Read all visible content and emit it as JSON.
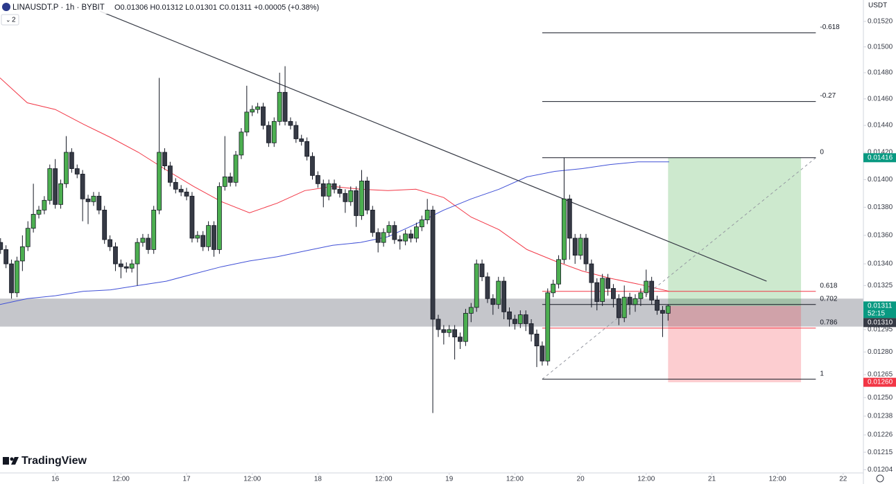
{
  "chart_data": {
    "type": "candlestick",
    "title": "LINAUSDT.P · 1h · BYBIT",
    "ohlc_text": "O0.01306 H0.01312 L0.01301 C0.01311 +0.00005 (+0.38%)",
    "indicator_count": "2",
    "currency": "USDT",
    "brand": "TradingView",
    "log_scale": true,
    "grid": false,
    "up_color": "#4caf50",
    "down_color": "#363a45",
    "xlim": [
      -10.1,
      147.7
    ],
    "ylim": [
      0.01202,
      0.01537
    ],
    "xticks": [
      {
        "value": 0,
        "label": "16"
      },
      {
        "value": 12,
        "label": "12:00"
      },
      {
        "value": 24,
        "label": "17"
      },
      {
        "value": 36,
        "label": "12:00"
      },
      {
        "value": 48,
        "label": "18"
      },
      {
        "value": 60,
        "label": "12:00"
      },
      {
        "value": 72,
        "label": "19"
      },
      {
        "value": 84,
        "label": "12:00"
      },
      {
        "value": 96,
        "label": "20"
      },
      {
        "value": 108,
        "label": "12:00"
      },
      {
        "value": 120,
        "label": "21"
      },
      {
        "value": 132,
        "label": "12:00"
      },
      {
        "value": 144,
        "label": "22"
      }
    ],
    "yticks": [
      {
        "value": 0.0152,
        "label": "0.01520"
      },
      {
        "value": 0.015,
        "label": "0.01500"
      },
      {
        "value": 0.0148,
        "label": "0.01480"
      },
      {
        "value": 0.0146,
        "label": "0.01460"
      },
      {
        "value": 0.0144,
        "label": "0.01440"
      },
      {
        "value": 0.0142,
        "label": "0.01420"
      },
      {
        "value": 0.014,
        "label": "0.01400"
      },
      {
        "value": 0.0138,
        "label": "0.01380"
      },
      {
        "value": 0.0136,
        "label": "0.01360"
      },
      {
        "value": 0.0134,
        "label": "0.01340"
      },
      0.01325,
      0.01295,
      {
        "value": 0.0128,
        "label": "0.01280"
      },
      0.01265,
      {
        "value": 0.0125,
        "label": "0.01250"
      },
      0.01238,
      0.01226,
      0.01215,
      0.01204
    ],
    "x": [
      -10,
      -9,
      -8,
      -7,
      -6,
      -5,
      -4,
      -3,
      -2,
      -1,
      0,
      1,
      2,
      3,
      4,
      5,
      6,
      7,
      8,
      9,
      10,
      11,
      12,
      13,
      14,
      15,
      16,
      17,
      18,
      19,
      20,
      21,
      22,
      23,
      24,
      25,
      26,
      27,
      28,
      29,
      30,
      31,
      32,
      33,
      34,
      35,
      36,
      37,
      38,
      39,
      40,
      41,
      42,
      43,
      44,
      45,
      46,
      47,
      48,
      49,
      50,
      51,
      52,
      53,
      54,
      55,
      56,
      57,
      58,
      59,
      60,
      61,
      62,
      63,
      64,
      65,
      66,
      67,
      68,
      69,
      70,
      71,
      72,
      73,
      74,
      75,
      76,
      77,
      78,
      79,
      80,
      81,
      82,
      83,
      84,
      85,
      86,
      87,
      88,
      89,
      90,
      91,
      92,
      93,
      94,
      95,
      96,
      97,
      98,
      99,
      100,
      101,
      102,
      103,
      104,
      105,
      106,
      107,
      108,
      109,
      110,
      111,
      112
    ],
    "open": [
      0.01355,
      0.0135,
      0.0134,
      0.0132,
      0.01342,
      0.01352,
      0.01365,
      0.01375,
      0.01378,
      0.01385,
      0.01408,
      0.01382,
      0.01397,
      0.0142,
      0.01408,
      0.01404,
      0.01386,
      0.01384,
      0.01388,
      0.01378,
      0.01357,
      0.01352,
      0.0134,
      0.01338,
      0.01337,
      0.0134,
      0.01355,
      0.01358,
      0.0135,
      0.01378,
      0.0142,
      0.0141,
      0.01398,
      0.01393,
      0.01391,
      0.01388,
      0.01358,
      0.0136,
      0.01352,
      0.01367,
      0.0135,
      0.01395,
      0.01402,
      0.01398,
      0.01418,
      0.01435,
      0.0145,
      0.01452,
      0.01454,
      0.0144,
      0.01427,
      0.01443,
      0.01465,
      0.01443,
      0.0144,
      0.0143,
      0.01428,
      0.01417,
      0.01403,
      0.01397,
      0.01388,
      0.01397,
      0.01393,
      0.0139,
      0.01384,
      0.01392,
      0.01374,
      0.01399,
      0.01378,
      0.01362,
      0.01355,
      0.01362,
      0.01367,
      0.01357,
      0.01356,
      0.01361,
      0.01358,
      0.01366,
      0.01371,
      0.01378,
      0.01302,
      0.01295,
      0.01293,
      0.01295,
      0.0129,
      0.01287,
      0.01306,
      0.0131,
      0.0134,
      0.01331,
      0.01316,
      0.01312,
      0.01328,
      0.01307,
      0.01302,
      0.01299,
      0.01305,
      0.01299,
      0.01292,
      0.01284,
      0.01274,
      0.0132,
      0.01326,
      0.01343,
      0.01386,
      0.01358,
      0.01346,
      0.01358,
      0.0134,
      0.01327,
      0.01314,
      0.0133,
      0.01323,
      0.01316,
      0.01303,
      0.01317,
      0.01312,
      0.01316,
      0.0132,
      0.01328,
      0.01315,
      0.01308,
      0.01306
    ],
    "high": [
      0.01358,
      0.01353,
      0.01343,
      0.01345,
      0.0136,
      0.0137,
      0.01397,
      0.01381,
      0.01388,
      0.01411,
      0.01415,
      0.014,
      0.01432,
      0.01423,
      0.01411,
      0.01407,
      0.01389,
      0.01391,
      0.01391,
      0.01381,
      0.0136,
      0.01355,
      0.01343,
      0.01341,
      0.01343,
      0.01358,
      0.01361,
      0.01361,
      0.01381,
      0.01476,
      0.01423,
      0.01413,
      0.01401,
      0.01396,
      0.01394,
      0.01391,
      0.01363,
      0.01363,
      0.0137,
      0.0137,
      0.01398,
      0.01432,
      0.01405,
      0.01421,
      0.01438,
      0.0147,
      0.01455,
      0.01457,
      0.01457,
      0.01443,
      0.01446,
      0.0148,
      0.01485,
      0.01446,
      0.01443,
      0.01433,
      0.01431,
      0.0142,
      0.01406,
      0.014,
      0.014,
      0.014,
      0.01396,
      0.01393,
      0.01395,
      0.01395,
      0.01407,
      0.01402,
      0.01381,
      0.01365,
      0.01365,
      0.0137,
      0.0137,
      0.0136,
      0.01364,
      0.01364,
      0.01369,
      0.01374,
      0.01386,
      0.01381,
      0.01305,
      0.01298,
      0.01298,
      0.01298,
      0.01293,
      0.01309,
      0.01313,
      0.01343,
      0.01343,
      0.01334,
      0.01319,
      0.01331,
      0.01331,
      0.0131,
      0.01305,
      0.01308,
      0.01308,
      0.01302,
      0.01295,
      0.01287,
      0.01323,
      0.01329,
      0.01346,
      0.01416,
      0.01389,
      0.01361,
      0.01361,
      0.01361,
      0.01343,
      0.0133,
      0.01333,
      0.01333,
      0.01326,
      0.01319,
      0.01325,
      0.0132,
      0.01319,
      0.01323,
      0.01336,
      0.01331,
      0.01318,
      0.01311,
      0.01312
    ],
    "low": [
      0.01347,
      0.01337,
      0.01316,
      0.01317,
      0.01335,
      0.01349,
      0.01362,
      0.01372,
      0.01375,
      0.01382,
      0.01379,
      0.01379,
      0.01394,
      0.01405,
      0.01401,
      0.0137,
      0.01368,
      0.01381,
      0.01375,
      0.01354,
      0.01349,
      0.01335,
      0.0133,
      0.01334,
      0.01334,
      0.01325,
      0.01352,
      0.01347,
      0.01347,
      0.01375,
      0.01407,
      0.01395,
      0.0139,
      0.01388,
      0.01385,
      0.01355,
      0.01355,
      0.01349,
      0.01349,
      0.01345,
      0.01347,
      0.01392,
      0.01395,
      0.01395,
      0.01415,
      0.01432,
      0.01447,
      0.01449,
      0.01437,
      0.01424,
      0.01424,
      0.0144,
      0.0144,
      0.01437,
      0.01427,
      0.01425,
      0.01414,
      0.014,
      0.01394,
      0.0138,
      0.01385,
      0.0139,
      0.01387,
      0.01376,
      0.01381,
      0.01366,
      0.01371,
      0.01375,
      0.01359,
      0.01348,
      0.01352,
      0.01359,
      0.01354,
      0.0135,
      0.01353,
      0.01355,
      0.01355,
      0.01363,
      0.01368,
      0.0124,
      0.0129,
      0.01285,
      0.0129,
      0.01275,
      0.01282,
      0.01284,
      0.013,
      0.01307,
      0.01328,
      0.01313,
      0.01305,
      0.01309,
      0.01302,
      0.01297,
      0.01295,
      0.01296,
      0.01294,
      0.01287,
      0.0127,
      0.01271,
      0.01271,
      0.01317,
      0.01323,
      0.0134,
      0.01343,
      0.0134,
      0.01343,
      0.01335,
      0.0131,
      0.01308,
      0.01311,
      0.01318,
      0.0131,
      0.01298,
      0.013,
      0.01305,
      0.01307,
      0.01311,
      0.01317,
      0.01312,
      0.01305,
      0.0129,
      0.01301
    ],
    "close": [
      0.0135,
      0.0134,
      0.0132,
      0.01342,
      0.01352,
      0.01365,
      0.01375,
      0.01378,
      0.01385,
      0.01408,
      0.01382,
      0.01397,
      0.0142,
      0.01408,
      0.01404,
      0.01386,
      0.01384,
      0.01388,
      0.01378,
      0.01357,
      0.01352,
      0.0134,
      0.01338,
      0.01337,
      0.0134,
      0.01355,
      0.01358,
      0.0135,
      0.01378,
      0.0142,
      0.0141,
      0.01398,
      0.01393,
      0.01391,
      0.01388,
      0.01358,
      0.0136,
      0.01352,
      0.01367,
      0.0135,
      0.01395,
      0.01402,
      0.01398,
      0.01418,
      0.01435,
      0.0145,
      0.01452,
      0.01454,
      0.0144,
      0.01427,
      0.01443,
      0.01465,
      0.01443,
      0.0144,
      0.0143,
      0.01428,
      0.01417,
      0.01403,
      0.01397,
      0.01388,
      0.01397,
      0.01393,
      0.0139,
      0.01384,
      0.01392,
      0.01374,
      0.01399,
      0.01378,
      0.01362,
      0.01355,
      0.01362,
      0.01367,
      0.01357,
      0.01356,
      0.01361,
      0.01358,
      0.01366,
      0.01371,
      0.01378,
      0.01302,
      0.01295,
      0.01293,
      0.01295,
      0.0129,
      0.01287,
      0.01306,
      0.0131,
      0.0134,
      0.01331,
      0.01316,
      0.01312,
      0.01328,
      0.01307,
      0.01302,
      0.01299,
      0.01305,
      0.01299,
      0.01292,
      0.01284,
      0.01274,
      0.0132,
      0.01326,
      0.01343,
      0.01386,
      0.01358,
      0.01346,
      0.01358,
      0.0134,
      0.01327,
      0.01314,
      0.0133,
      0.01323,
      0.01316,
      0.01303,
      0.01317,
      0.01312,
      0.01316,
      0.0132,
      0.01328,
      0.01315,
      0.01308,
      0.01306,
      0.01311
    ],
    "moving_averages": [
      {
        "color": "#f23645",
        "x": [
          -10.1,
          -5.1,
          0,
          5.1,
          10.1,
          15.2,
          20.3,
          25.3,
          30.4,
          35.5,
          40.6,
          45.6,
          50.7,
          55.8,
          60.8,
          65.9,
          71,
          76,
          81.1,
          86.2,
          91.3,
          96.3,
          101.4,
          106.5,
          112.2
        ],
        "values": [
          0.01476,
          0.01457,
          0.01452,
          0.01441,
          0.01431,
          0.0142,
          0.01407,
          0.01395,
          0.01384,
          0.01376,
          0.01383,
          0.01392,
          0.01395,
          0.01393,
          0.01392,
          0.01393,
          0.01387,
          0.01373,
          0.01364,
          0.0135,
          0.01342,
          0.01335,
          0.0133,
          0.01326,
          0.01321
        ]
      },
      {
        "color": "#3f4fd6",
        "x": [
          -10.1,
          -5.1,
          0,
          5.1,
          10.1,
          15.2,
          20.3,
          25.3,
          30.4,
          35.5,
          40.6,
          45.6,
          50.7,
          55.8,
          60.8,
          65.9,
          71,
          76,
          81.1,
          86.2,
          91.3,
          96.3,
          101.4,
          106.5,
          112.2
        ],
        "values": [
          0.01312,
          0.01316,
          0.01318,
          0.01321,
          0.01322,
          0.01325,
          0.01328,
          0.01333,
          0.01338,
          0.01342,
          0.01345,
          0.01349,
          0.01353,
          0.01355,
          0.01359,
          0.01368,
          0.01378,
          0.01386,
          0.01393,
          0.01402,
          0.01406,
          0.01408,
          0.01411,
          0.01413,
          0.01413
        ]
      }
    ],
    "trendline": {
      "color": "#363a45",
      "x": [
        8.2,
        130
      ],
      "values": [
        0.01528,
        0.01328
      ]
    },
    "zone": [
      0.01297,
      0.01316
    ],
    "fib": {
      "x": [
        89,
        139
      ],
      "levels": [
        {
          "ratio": -0.618,
          "value": 0.01511,
          "color": "#131722"
        },
        {
          "ratio": -0.27,
          "value": 0.01458,
          "color": "#131722"
        },
        {
          "ratio": 0,
          "value": 0.01416,
          "color": "#131722"
        },
        {
          "ratio": 0.618,
          "value": 0.01321,
          "color": "#f23645"
        },
        {
          "ratio": 0.702,
          "value": 0.01312,
          "color": "#131722"
        },
        {
          "ratio": 0.786,
          "value": 0.01296,
          "color": "#f23645"
        },
        {
          "ratio": 1,
          "value": 0.01262,
          "color": "#131722"
        }
      ]
    },
    "position": {
      "x": [
        112,
        136.3
      ],
      "target": 0.01416,
      "entry": 0.01311,
      "stop": 0.0126
    },
    "price_labels": [
      {
        "value": 0.01416,
        "label": "0.01416",
        "color": "#089981"
      },
      {
        "value": 0.01311,
        "label": "0.01311",
        "sub": "52:15",
        "color": "#089981"
      },
      {
        "value": 0.0131,
        "label": "0.01310",
        "color": "#363a45"
      },
      {
        "value": 0.0126,
        "label": "0.01260",
        "color": "#f23645"
      }
    ]
  }
}
